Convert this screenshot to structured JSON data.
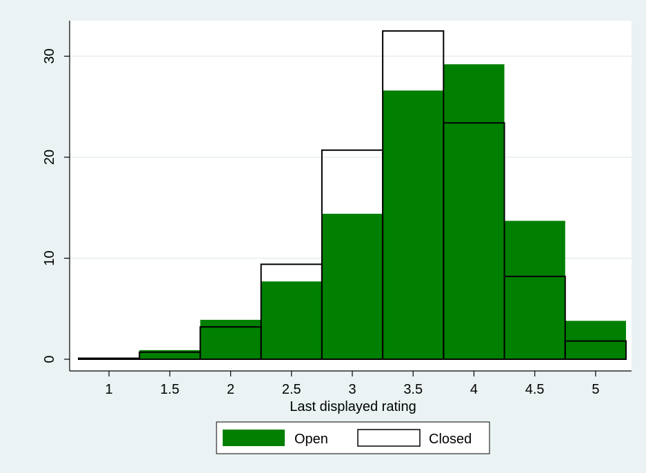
{
  "chart_data": {
    "type": "bar",
    "title": "",
    "xlabel": "Last displayed rating",
    "ylabel": "",
    "bin_width": 0.5,
    "categories": [
      1,
      1.5,
      2,
      2.5,
      3,
      3.5,
      4,
      4.5,
      5
    ],
    "series": [
      {
        "name": "Open",
        "values": [
          0.0,
          0.9,
          3.9,
          7.7,
          14.4,
          26.6,
          29.2,
          13.7,
          3.8
        ],
        "color": "#007f00",
        "style": "filled"
      },
      {
        "name": "Closed",
        "values": [
          0.1,
          0.7,
          3.2,
          9.4,
          20.7,
          32.5,
          23.4,
          8.2,
          1.8
        ],
        "color": "#000000",
        "style": "outline"
      }
    ],
    "xlim": [
      0.75,
      5.25
    ],
    "ylim": [
      0,
      30
    ],
    "x_ticks": [
      "1",
      "1.5",
      "2",
      "2.5",
      "3",
      "3.5",
      "4",
      "4.5",
      "5"
    ],
    "y_ticks": [
      "0",
      "10",
      "20",
      "30"
    ],
    "grid": true,
    "legend_position": "bottom"
  },
  "colors": {
    "background": "#eaf2f3",
    "plot_background": "#ffffff",
    "open_fill": "#007f00",
    "grid": "#e6eef0"
  }
}
